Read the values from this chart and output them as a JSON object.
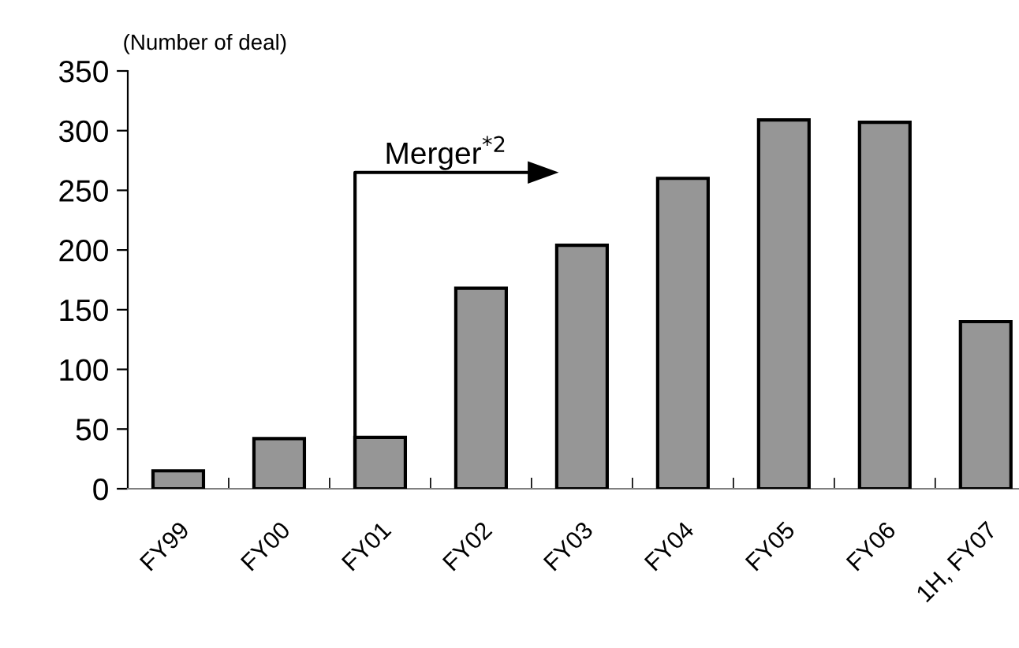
{
  "chart_data": {
    "type": "bar",
    "ylabel": "(Number of deal)",
    "categories": [
      "FY99",
      "FY00",
      "FY01",
      "FY02",
      "FY03",
      "FY04",
      "FY05",
      "FY06",
      "1H, FY07"
    ],
    "values": [
      15,
      42,
      43,
      168,
      204,
      260,
      309,
      307,
      140
    ],
    "color": "#969696",
    "ylim": [
      0,
      350
    ],
    "yticks": [
      0,
      50,
      100,
      150,
      200,
      250,
      300,
      350
    ],
    "grid": false,
    "legend": false,
    "annotations": [
      "Merger$^{*2}$"
    ]
  }
}
